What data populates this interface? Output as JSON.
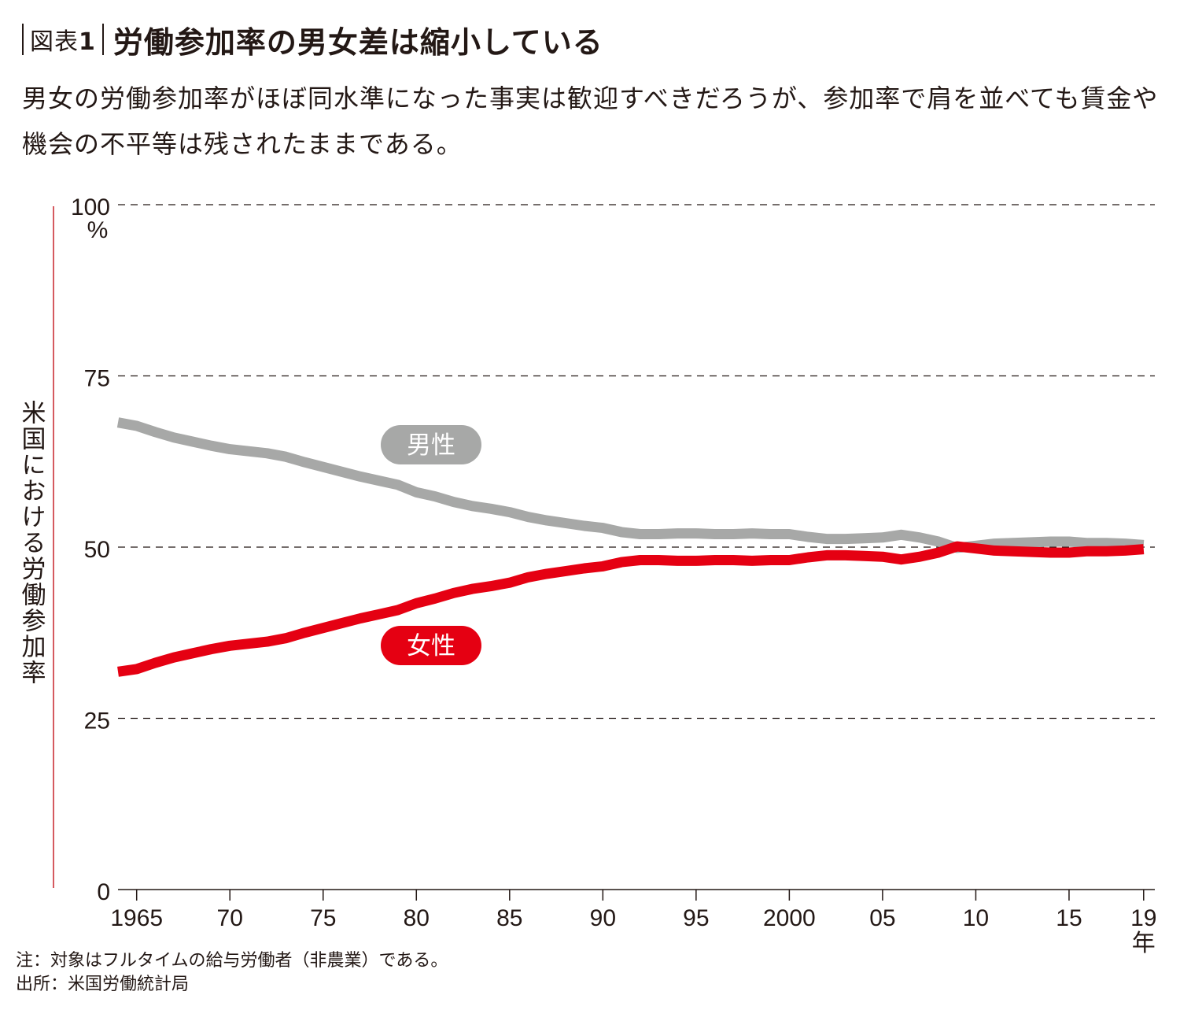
{
  "header": {
    "fig_label_prefix": "図表",
    "fig_label_number": "1",
    "title": "労働参加率の男女差は縮小している"
  },
  "subtitle": "男女の労働参加率がほぼ同水準になった事実は歓迎すべきだろうが、参加率で肩を並べても賃金や機会の不平等は残されたままである。",
  "notes": {
    "note": "注：対象はフルタイムの給与労働者（非農業）である。",
    "source": "出所：米国労働統計局"
  },
  "chart_data": {
    "type": "line",
    "ylabel": "米国における労働参加率",
    "y_unit": "%",
    "x_unit": "年",
    "ylim": [
      0,
      100
    ],
    "xlim": [
      1964,
      2019.6
    ],
    "y_ticks": [
      {
        "value": 0,
        "label": "0"
      },
      {
        "value": 25,
        "label": "25"
      },
      {
        "value": 50,
        "label": "50"
      },
      {
        "value": 75,
        "label": "75"
      },
      {
        "value": 100,
        "label": "100"
      }
    ],
    "x_ticks": [
      {
        "value": 1965,
        "label": "1965"
      },
      {
        "value": 1970,
        "label": "70"
      },
      {
        "value": 1975,
        "label": "75"
      },
      {
        "value": 1980,
        "label": "80"
      },
      {
        "value": 1985,
        "label": "85"
      },
      {
        "value": 1990,
        "label": "90"
      },
      {
        "value": 1995,
        "label": "95"
      },
      {
        "value": 2000,
        "label": "2000"
      },
      {
        "value": 2005,
        "label": "05"
      },
      {
        "value": 2010,
        "label": "10"
      },
      {
        "value": 2015,
        "label": "15"
      },
      {
        "value": 2019,
        "label": "19"
      }
    ],
    "grid": "horizontal dashed",
    "x": [
      1964,
      1965,
      1966,
      1967,
      1968,
      1969,
      1970,
      1971,
      1972,
      1973,
      1974,
      1975,
      1976,
      1977,
      1978,
      1979,
      1980,
      1981,
      1982,
      1983,
      1984,
      1985,
      1986,
      1987,
      1988,
      1989,
      1990,
      1991,
      1992,
      1993,
      1994,
      1995,
      1996,
      1997,
      1998,
      1999,
      2000,
      2001,
      2002,
      2003,
      2004,
      2005,
      2006,
      2007,
      2008,
      2009,
      2010,
      2011,
      2012,
      2013,
      2014,
      2015,
      2016,
      2017,
      2018,
      2019
    ],
    "series": [
      {
        "name": "男性",
        "color": "#a7a8a7",
        "label_bg": "#a7a8a7",
        "values": [
          68.2,
          67.7,
          66.8,
          66.0,
          65.4,
          64.8,
          64.3,
          64.0,
          63.7,
          63.2,
          62.4,
          61.7,
          61.0,
          60.3,
          59.7,
          59.1,
          58.0,
          57.4,
          56.6,
          56.0,
          55.6,
          55.1,
          54.4,
          53.9,
          53.5,
          53.1,
          52.8,
          52.2,
          51.9,
          51.9,
          52.0,
          52.0,
          51.9,
          51.9,
          52.0,
          51.9,
          51.9,
          51.5,
          51.2,
          51.2,
          51.3,
          51.4,
          51.8,
          51.4,
          50.8,
          49.9,
          50.2,
          50.5,
          50.6,
          50.7,
          50.8,
          50.8,
          50.6,
          50.6,
          50.5,
          50.3
        ]
      },
      {
        "name": "女性",
        "color": "#e50012",
        "label_bg": "#e50012",
        "values": [
          31.8,
          32.2,
          33.1,
          33.9,
          34.5,
          35.1,
          35.6,
          35.9,
          36.2,
          36.7,
          37.5,
          38.2,
          38.9,
          39.6,
          40.2,
          40.8,
          41.8,
          42.5,
          43.3,
          43.9,
          44.3,
          44.8,
          45.6,
          46.1,
          46.5,
          46.9,
          47.2,
          47.8,
          48.1,
          48.1,
          48.0,
          48.0,
          48.1,
          48.1,
          48.0,
          48.1,
          48.1,
          48.5,
          48.8,
          48.8,
          48.7,
          48.6,
          48.2,
          48.6,
          49.2,
          50.1,
          49.8,
          49.5,
          49.4,
          49.3,
          49.2,
          49.2,
          49.4,
          49.4,
          49.5,
          49.7
        ]
      }
    ]
  }
}
